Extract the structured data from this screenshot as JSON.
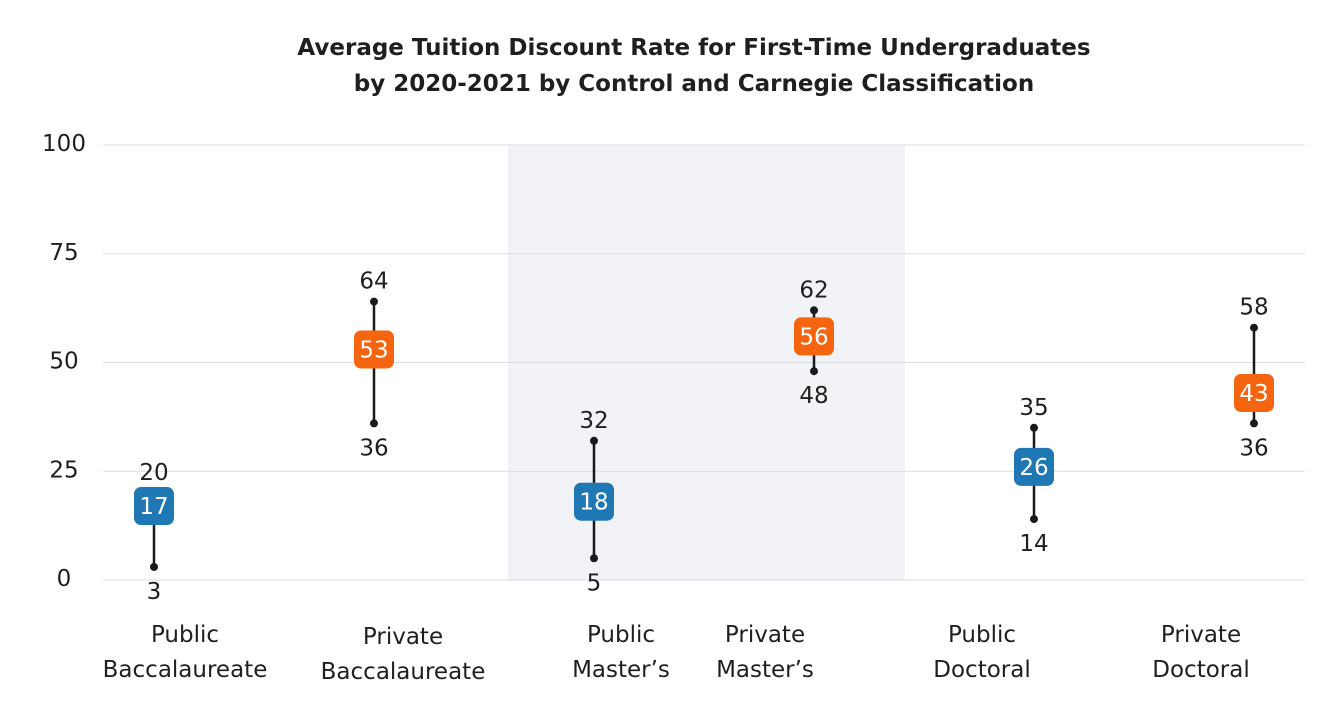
{
  "chart_data": {
    "type": "range",
    "title": [
      "Average Tuition Discount Rate for First-Time Undergraduates",
      "by 2020-2021 by Control and Carnegie Classification"
    ],
    "xlabel": "",
    "ylabel": "",
    "ylim": [
      0,
      100
    ],
    "yticks": [
      0,
      25,
      50,
      75,
      100
    ],
    "grid": true,
    "categories": [
      [
        "Public",
        "Baccalaureate"
      ],
      [
        "Private",
        "Baccalaureate"
      ],
      [
        "Public",
        "Master’s"
      ],
      [
        "Private",
        "Master’s"
      ],
      [
        "Public",
        "Doctoral"
      ],
      [
        "Private",
        "Doctoral"
      ]
    ],
    "points": [
      {
        "low": 3,
        "high": 20,
        "value": 17,
        "control": "public"
      },
      {
        "low": 36,
        "high": 64,
        "value": 53,
        "control": "private"
      },
      {
        "low": 5,
        "high": 32,
        "value": 18,
        "control": "public"
      },
      {
        "low": 48,
        "high": 62,
        "value": 56,
        "control": "private"
      },
      {
        "low": 14,
        "high": 35,
        "value": 26,
        "control": "public"
      },
      {
        "low": 36,
        "high": 58,
        "value": 43,
        "control": "private"
      }
    ],
    "highlight_band": {
      "from_category": 2,
      "to_category": 3
    },
    "colors": {
      "public": "#1f77b4",
      "private": "#f5640e",
      "band": "#f2f3f6",
      "grid": "#dadde2",
      "whisker": "#1a1a1a"
    }
  }
}
